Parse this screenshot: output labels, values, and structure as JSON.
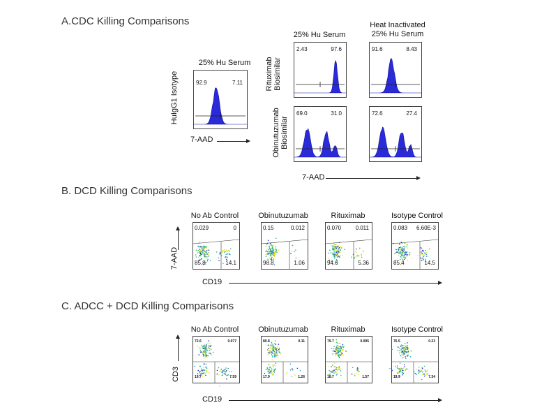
{
  "sections": {
    "a": {
      "title": "A.CDC Killing Comparisons"
    },
    "b": {
      "title": "B. DCD Killing Comparisons"
    },
    "c": {
      "title": "C. ADCC + DCD Killing Comparisons"
    }
  },
  "colors": {
    "histogram_fill": "#2a2ad8",
    "histogram_stroke": "#1010a0",
    "gate": "#222222"
  },
  "chart_data": [
    {
      "type": "histogram",
      "section": "A",
      "title": "A.CDC Killing Comparisons",
      "xlabel": "7-AAD",
      "columns": [
        "25% Hu Serum",
        "25% Hu Serum",
        "Heat Inactivated\n25% Hu Serum"
      ],
      "rows": [
        "HuIgG1 Isotype",
        "Rituximab Biosimilar",
        "Obinutuzumab Biosimilar"
      ],
      "panels": [
        {
          "row": "HuIgG1 Isotype",
          "column": "25% Hu Serum",
          "left_pct": "92.9",
          "right_pct": "7.11",
          "peaks": [
            [
              0.42,
              1.0,
              0.06
            ]
          ]
        },
        {
          "row": "Rituximab Biosimilar",
          "column": "25% Hu Serum",
          "left_pct": "2.43",
          "right_pct": "97.6",
          "peaks": [
            [
              0.8,
              1.0,
              0.035
            ]
          ]
        },
        {
          "row": "Rituximab Biosimilar",
          "column": "Heat Inactivated 25% Hu Serum",
          "left_pct": "91.6",
          "right_pct": "8.43",
          "peaks": [
            [
              0.42,
              1.0,
              0.06
            ]
          ]
        },
        {
          "row": "Obinutuzumab Biosimilar",
          "column": "25% Hu Serum",
          "left_pct": "69.0",
          "right_pct": "31.0",
          "peaks": [
            [
              0.25,
              0.88,
              0.06
            ],
            [
              0.62,
              0.8,
              0.05
            ],
            [
              0.79,
              0.38,
              0.035
            ]
          ]
        },
        {
          "row": "Obinutuzumab Biosimilar",
          "column": "Heat Inactivated 25% Hu Serum",
          "left_pct": "72.6",
          "right_pct": "27.4",
          "peaks": [
            [
              0.25,
              0.88,
              0.06
            ],
            [
              0.62,
              0.8,
              0.05
            ],
            [
              0.79,
              0.38,
              0.035
            ]
          ]
        }
      ]
    },
    {
      "type": "scatter",
      "section": "B",
      "title": "B. DCD Killing Comparisons",
      "xlabel": "CD19",
      "ylabel": "7-AAD",
      "panels": [
        {
          "title": "No Ab Control",
          "quadrants": {
            "ul": "0.029",
            "ur": "0",
            "ll": "85.8",
            "lr": "14.1"
          }
        },
        {
          "title": "Obinutuzumab",
          "quadrants": {
            "ul": "0.15",
            "ur": "0.012",
            "ll": "98.8",
            "lr": "1.06"
          }
        },
        {
          "title": "Rituximab",
          "quadrants": {
            "ul": "0.070",
            "ur": "0.011",
            "ll": "94.6",
            "lr": "5.36"
          }
        },
        {
          "title": "Isotype Control",
          "quadrants": {
            "ul": "0.083",
            "ur": "6.60E-3",
            "ll": "85.4",
            "lr": "14.5"
          }
        }
      ]
    },
    {
      "type": "scatter",
      "section": "C",
      "title": "C. ADCC + DCD Killing Comparisons",
      "xlabel": "CD19",
      "ylabel": "CD3",
      "panels": [
        {
          "title": "No Ab Control",
          "quadrants": {
            "ul": "72.6",
            "ur": "0.077",
            "ll": "19.7",
            "lr": "7.59"
          }
        },
        {
          "title": "Obinutuzumab",
          "quadrants": {
            "ul": "80.8",
            "ur": "0.11",
            "ll": "17.9",
            "lr": "1.26"
          }
        },
        {
          "title": "Rituximab",
          "quadrants": {
            "ul": "79.7",
            "ur": "0.095",
            "ll": "18.7",
            "lr": "1.57"
          }
        },
        {
          "title": "Isotype Control",
          "quadrants": {
            "ul": "76.5",
            "ur": "0.23",
            "ll": "15.9",
            "lr": "7.34"
          }
        }
      ]
    }
  ]
}
